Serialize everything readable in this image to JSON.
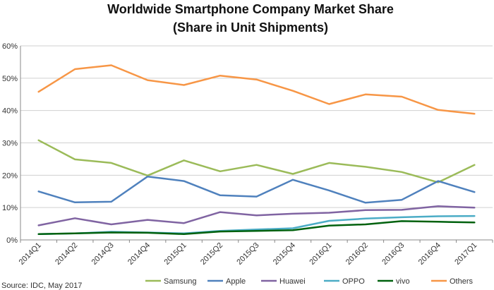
{
  "chart_data": {
    "type": "line",
    "title": "Worldwide Smartphone Company Market Share",
    "subtitle": "(Share in Unit Shipments)",
    "xlabel": "",
    "ylabel": "",
    "ylim": [
      0,
      60
    ],
    "y_ticks": [
      "0%",
      "10%",
      "20%",
      "30%",
      "40%",
      "50%",
      "60%"
    ],
    "grid": true,
    "legend_position": "bottom",
    "categories": [
      "2014Q1",
      "2014Q2",
      "2014Q3",
      "2014Q4",
      "2015Q1",
      "2015Q2",
      "2015Q3",
      "2015Q4",
      "2016Q1",
      "2016Q2",
      "2016Q3",
      "2016Q4",
      "2017Q1"
    ],
    "series": [
      {
        "name": "Samsung",
        "color": "#9bbb59",
        "values": [
          30.8,
          24.9,
          23.8,
          19.9,
          24.6,
          21.2,
          23.2,
          20.4,
          23.8,
          22.6,
          21.0,
          17.8,
          23.2
        ]
      },
      {
        "name": "Apple",
        "color": "#4f81bd",
        "values": [
          15.0,
          11.6,
          11.8,
          19.6,
          18.2,
          13.8,
          13.4,
          18.6,
          15.3,
          11.5,
          12.4,
          18.2,
          14.8
        ]
      },
      {
        "name": "Huawei",
        "color": "#8064a2",
        "values": [
          4.5,
          6.7,
          4.8,
          6.2,
          5.2,
          8.6,
          7.6,
          8.1,
          8.4,
          9.2,
          9.3,
          10.4,
          10.0
        ]
      },
      {
        "name": "OPPO",
        "color": "#4bacc6",
        "values": [
          1.8,
          2.0,
          2.5,
          2.3,
          2.0,
          2.8,
          3.2,
          3.6,
          5.9,
          6.6,
          7.0,
          7.3,
          7.4
        ]
      },
      {
        "name": "vivo",
        "color": "#00610e",
        "values": [
          1.8,
          2.0,
          2.3,
          2.2,
          1.8,
          2.6,
          2.8,
          3.0,
          4.4,
          4.8,
          5.8,
          5.6,
          5.4
        ]
      },
      {
        "name": "Others",
        "color": "#f79646",
        "values": [
          45.8,
          52.8,
          54.0,
          49.4,
          47.9,
          50.8,
          49.6,
          46.1,
          42.0,
          45.0,
          44.3,
          40.2,
          39.0
        ]
      }
    ],
    "source": "Source: IDC, May 2017"
  }
}
